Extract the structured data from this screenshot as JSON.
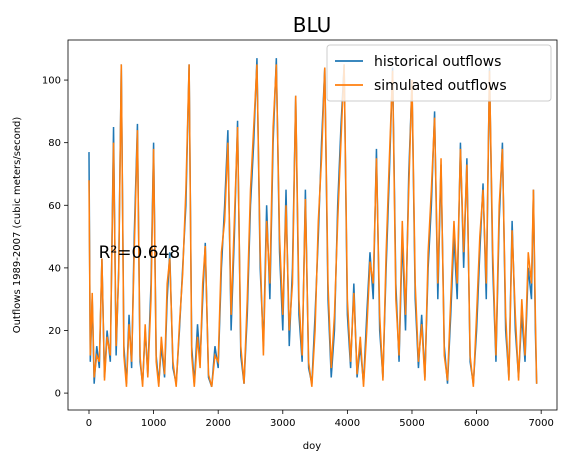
{
  "chart_data": {
    "type": "line",
    "title": "BLU",
    "xlabel": "doy",
    "ylabel": "Outflows 1989-2007 (cubic meters/second)",
    "annotation": "R²=0.648",
    "annotation_xy": [
      150,
      45
    ],
    "legend": "upper right",
    "grid": false,
    "xlim": [
      -325,
      7245
    ],
    "ylim": [
      -5.4,
      112.8
    ],
    "xticks": [
      0,
      1000,
      2000,
      3000,
      4000,
      5000,
      6000,
      7000
    ],
    "yticks": [
      0,
      20,
      40,
      60,
      80,
      100
    ],
    "x": [
      0,
      20,
      50,
      80,
      120,
      160,
      200,
      240,
      280,
      330,
      380,
      420,
      460,
      500,
      540,
      580,
      620,
      660,
      700,
      750,
      790,
      830,
      870,
      910,
      960,
      1000,
      1040,
      1080,
      1120,
      1170,
      1210,
      1250,
      1300,
      1350,
      1400,
      1450,
      1500,
      1550,
      1590,
      1630,
      1680,
      1720,
      1760,
      1800,
      1850,
      1900,
      1950,
      2000,
      2050,
      2100,
      2150,
      2200,
      2250,
      2300,
      2350,
      2400,
      2450,
      2500,
      2550,
      2600,
      2650,
      2700,
      2750,
      2800,
      2850,
      2900,
      2950,
      3000,
      3050,
      3100,
      3150,
      3200,
      3250,
      3300,
      3350,
      3400,
      3450,
      3500,
      3550,
      3600,
      3650,
      3700,
      3750,
      3800,
      3850,
      3900,
      3950,
      4000,
      4050,
      4100,
      4150,
      4200,
      4250,
      4300,
      4350,
      4400,
      4450,
      4500,
      4550,
      4600,
      4650,
      4700,
      4750,
      4800,
      4850,
      4900,
      4950,
      5000,
      5050,
      5100,
      5150,
      5200,
      5250,
      5300,
      5350,
      5400,
      5450,
      5500,
      5550,
      5600,
      5650,
      5700,
      5750,
      5800,
      5850,
      5900,
      5950,
      6000,
      6050,
      6100,
      6150,
      6200,
      6250,
      6300,
      6350,
      6400,
      6450,
      6500,
      6550,
      6600,
      6650,
      6700,
      6750,
      6800,
      6850,
      6880,
      6910,
      6930
    ],
    "series": [
      {
        "name": "historical outflows",
        "color": "#1f77b4",
        "values": [
          77,
          10,
          30,
          3,
          15,
          8,
          43,
          5,
          20,
          10,
          85,
          12,
          40,
          105,
          15,
          3,
          25,
          8,
          50,
          86,
          10,
          3,
          20,
          6,
          35,
          80,
          12,
          3,
          15,
          5,
          30,
          45,
          8,
          3,
          20,
          40,
          60,
          105,
          15,
          3,
          22,
          10,
          30,
          48,
          5,
          2,
          15,
          8,
          40,
          60,
          84,
          20,
          50,
          87,
          12,
          3,
          25,
          60,
          80,
          107,
          40,
          15,
          60,
          30,
          80,
          107,
          45,
          20,
          65,
          15,
          40,
          95,
          25,
          10,
          65,
          8,
          3,
          25,
          50,
          80,
          104,
          30,
          5,
          20,
          60,
          85,
          105,
          25,
          8,
          35,
          5,
          15,
          3,
          25,
          45,
          30,
          78,
          20,
          5,
          40,
          70,
          104,
          35,
          10,
          50,
          20,
          70,
          99,
          30,
          8,
          25,
          5,
          40,
          60,
          90,
          30,
          73,
          15,
          3,
          25,
          50,
          30,
          80,
          40,
          75,
          10,
          3,
          20,
          45,
          67,
          30,
          104,
          40,
          10,
          55,
          80,
          20,
          5,
          55,
          20,
          5,
          25,
          10,
          40,
          30,
          65,
          20,
          3
        ]
      },
      {
        "name": "simulated outflows",
        "color": "#ff7f0e",
        "values": [
          68,
          12,
          32,
          5,
          12,
          10,
          43,
          4,
          18,
          12,
          80,
          15,
          38,
          105,
          12,
          2,
          22,
          10,
          45,
          84,
          12,
          2,
          22,
          5,
          30,
          78,
          10,
          2,
          18,
          6,
          35,
          43,
          10,
          2,
          22,
          38,
          65,
          105,
          12,
          2,
          18,
          8,
          35,
          47,
          6,
          2,
          12,
          10,
          45,
          55,
          80,
          25,
          55,
          85,
          15,
          3,
          30,
          65,
          85,
          105,
          45,
          12,
          55,
          35,
          85,
          105,
          50,
          25,
          60,
          20,
          35,
          95,
          30,
          12,
          62,
          10,
          2,
          20,
          55,
          75,
          104,
          35,
          8,
          25,
          55,
          80,
          105,
          30,
          10,
          32,
          6,
          18,
          2,
          20,
          42,
          35,
          75,
          25,
          4,
          45,
          75,
          103,
          30,
          12,
          55,
          25,
          65,
          100,
          35,
          10,
          22,
          4,
          45,
          65,
          88,
          35,
          75,
          12,
          4,
          30,
          55,
          35,
          78,
          45,
          73,
          12,
          2,
          25,
          50,
          65,
          35,
          103,
          45,
          12,
          60,
          78,
          25,
          4,
          52,
          25,
          4,
          30,
          12,
          45,
          35,
          65,
          25,
          3
        ]
      }
    ]
  }
}
